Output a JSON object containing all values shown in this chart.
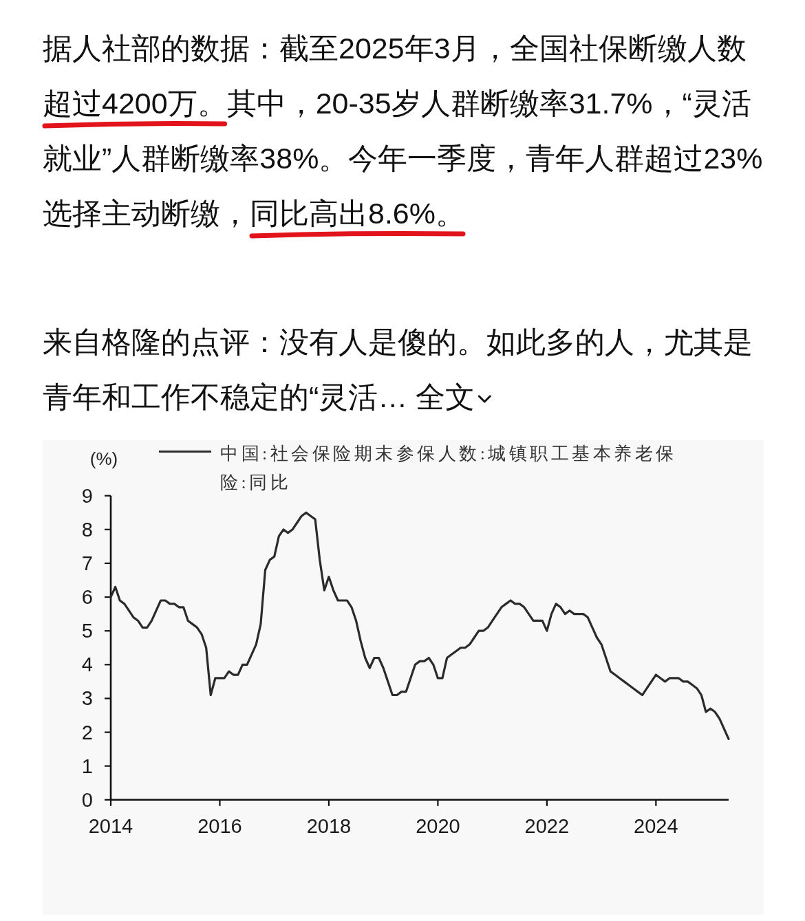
{
  "chart_data": {
    "type": "line",
    "ylabel": "(%)",
    "x": [
      "2014-01",
      "2014-02",
      "2014-03",
      "2014-04",
      "2014-05",
      "2014-06",
      "2014-07",
      "2014-08",
      "2014-09",
      "2014-10",
      "2014-11",
      "2014-12",
      "2015-01",
      "2015-02",
      "2015-03",
      "2015-04",
      "2015-05",
      "2015-06",
      "2015-07",
      "2015-08",
      "2015-09",
      "2015-10",
      "2015-11",
      "2015-12",
      "2016-01",
      "2016-02",
      "2016-03",
      "2016-04",
      "2016-05",
      "2016-06",
      "2016-07",
      "2016-08",
      "2016-09",
      "2016-10",
      "2016-11",
      "2016-12",
      "2017-01",
      "2017-02",
      "2017-03",
      "2017-04",
      "2017-05",
      "2017-06",
      "2017-07",
      "2017-08",
      "2017-09",
      "2017-10",
      "2017-11",
      "2017-12",
      "2018-01",
      "2018-02",
      "2018-03",
      "2018-04",
      "2018-05",
      "2018-06",
      "2018-07",
      "2018-08",
      "2018-09",
      "2018-10",
      "2018-11",
      "2018-12",
      "2019-01",
      "2019-02",
      "2019-03",
      "2019-04",
      "2019-05",
      "2019-06",
      "2019-07",
      "2019-08",
      "2019-09",
      "2019-10",
      "2019-11",
      "2019-12",
      "2020-01",
      "2020-02",
      "2020-03",
      "2020-04",
      "2020-05",
      "2020-06",
      "2020-07",
      "2020-08",
      "2020-09",
      "2020-10",
      "2020-11",
      "2020-12",
      "2021-01",
      "2021-02",
      "2021-03",
      "2021-04",
      "2021-05",
      "2021-06",
      "2021-07",
      "2021-08",
      "2021-09",
      "2021-10",
      "2021-11",
      "2021-12",
      "2022-01",
      "2022-02",
      "2022-03",
      "2022-04",
      "2022-05",
      "2022-06",
      "2022-07",
      "2022-08",
      "2022-09",
      "2022-10",
      "2022-11",
      "2022-12",
      "2023-01",
      "2023-02",
      "2023-03",
      "2023-04",
      "2023-05",
      "2023-06",
      "2023-07",
      "2023-08",
      "2023-09",
      "2023-10",
      "2023-11",
      "2023-12",
      "2024-01",
      "2024-02",
      "2024-03",
      "2024-04",
      "2024-05",
      "2024-06",
      "2024-07",
      "2024-08",
      "2024-09",
      "2024-10",
      "2024-11",
      "2024-12",
      "2025-01",
      "2025-02",
      "2025-03",
      "2025-04",
      "2025-05"
    ],
    "series": [
      {
        "name": "中国:社会保险期末参保人数:城镇职工基本养老保险:同比",
        "color": "#2b2b2b",
        "values": [
          6.0,
          6.3,
          5.9,
          5.8,
          5.6,
          5.4,
          5.3,
          5.1,
          5.1,
          5.3,
          5.6,
          5.9,
          5.9,
          5.8,
          5.8,
          5.7,
          5.7,
          5.3,
          5.2,
          5.1,
          4.9,
          4.5,
          3.1,
          3.6,
          3.6,
          3.6,
          3.8,
          3.7,
          3.7,
          4.0,
          4.0,
          4.3,
          4.6,
          5.2,
          6.8,
          7.1,
          7.2,
          7.8,
          8.0,
          7.9,
          8.0,
          8.2,
          8.4,
          8.5,
          8.4,
          8.3,
          7.1,
          6.2,
          6.6,
          6.2,
          5.9,
          5.9,
          5.9,
          5.7,
          5.3,
          4.7,
          4.2,
          3.9,
          4.2,
          4.2,
          3.9,
          3.5,
          3.1,
          3.1,
          3.2,
          3.2,
          3.6,
          4.0,
          4.1,
          4.1,
          4.2,
          4.0,
          3.6,
          3.6,
          4.2,
          4.3,
          4.4,
          4.5,
          4.5,
          4.6,
          4.8,
          5.0,
          5.0,
          5.1,
          5.3,
          5.5,
          5.7,
          5.8,
          5.9,
          5.8,
          5.8,
          5.7,
          5.5,
          5.3,
          5.3,
          5.3,
          5.0,
          5.5,
          5.8,
          5.7,
          5.5,
          5.6,
          5.5,
          5.5,
          5.5,
          5.4,
          5.1,
          4.8,
          4.6,
          4.2,
          3.8,
          3.7,
          3.6,
          3.5,
          3.4,
          3.3,
          3.2,
          3.1,
          3.3,
          3.5,
          3.7,
          3.6,
          3.5,
          3.6,
          3.6,
          3.6,
          3.5,
          3.5,
          3.4,
          3.3,
          3.1,
          2.6,
          2.7,
          2.6,
          2.4,
          2.1,
          1.8
        ]
      }
    ],
    "xlim": [
      "2014-01",
      "2025-05"
    ],
    "xticks": [
      "2014",
      "2016",
      "2018",
      "2020",
      "2022",
      "2024"
    ],
    "ylim": [
      0,
      9
    ],
    "yticks": [
      0,
      1,
      2,
      3,
      4,
      5,
      6,
      7,
      8,
      9
    ],
    "legend": "top",
    "annotations": [
      "据人社部的数据：截至2025年3月，全国社保断缴人数超过4200万。其中，20-35岁人群断缴率31.7%，“灵活就业”人群断缴率38%。今年一季度，青年人群超过23%选择主动断缴，同比高出8.6%。",
      "来自格隆的点评：没有人是傻的。如此多的人，尤其是青年和工作不稳定的“灵活… 全文"
    ]
  }
}
